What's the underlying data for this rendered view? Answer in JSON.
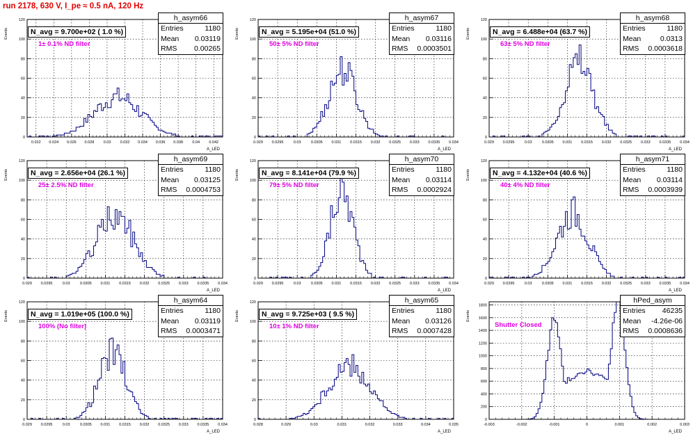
{
  "title": "run 2178,   630 V, I_pe ≈ 0.5 nA, 120 Hz",
  "chart_data": [
    {
      "type": "histogram",
      "name": "h_asym66",
      "navg": "N_avg = 9.700e+02 ( 1.0 %)",
      "label": "1± 0.1% ND filter",
      "stats": {
        "entries": "1180",
        "mean": "0.03119",
        "rms": "0.00265"
      },
      "xlim": [
        0.021,
        0.043
      ],
      "xticks": [
        "0.022",
        "0.024",
        "0.026",
        "0.028",
        "0.03",
        "0.032",
        "0.034",
        "0.036",
        "0.038",
        "0.04",
        "0.042"
      ],
      "ylim": [
        0,
        120
      ],
      "yticks": [
        "0",
        "20",
        "40",
        "60",
        "80",
        "100",
        "120"
      ],
      "ylabel": "Events",
      "xlabel": "A_LED",
      "mean": 0.03119,
      "rms": 0.00265,
      "peak": 42
    },
    {
      "type": "histogram",
      "name": "h_asym67",
      "navg": "N_avg = 5.195e+04 (51.0 %)",
      "label": "50± 5% ND filter",
      "stats": {
        "entries": "1180",
        "mean": "0.03116",
        "rms": "0.0003501"
      },
      "xlim": [
        0.029,
        0.034
      ],
      "xticks": [
        "0.029",
        "0.0295",
        "0.03",
        "0.0305",
        "0.031",
        "0.0315",
        "0.032",
        "0.0325",
        "0.033",
        "0.0335",
        "0.034"
      ],
      "ylim": [
        0,
        120
      ],
      "yticks": [
        "0",
        "20",
        "40",
        "60",
        "80",
        "100",
        "120"
      ],
      "ylabel": "Events",
      "xlabel": "A_LED",
      "mean": 0.03116,
      "rms": 0.0003501,
      "peak": 72
    },
    {
      "type": "histogram",
      "name": "h_asym68",
      "navg": "N_avg = 6.488e+04 (63.7 %)",
      "label": "63± 5% ND filter",
      "stats": {
        "entries": "1180",
        "mean": "0.0313",
        "rms": "0.0003618"
      },
      "xlim": [
        0.029,
        0.034
      ],
      "xticks": [
        "0.029",
        "0.0295",
        "0.03",
        "0.0305",
        "0.031",
        "0.0315",
        "0.032",
        "0.0325",
        "0.033",
        "0.0335",
        "0.034"
      ],
      "ylim": [
        0,
        120
      ],
      "yticks": [
        "0",
        "20",
        "40",
        "60",
        "80",
        "100",
        "120"
      ],
      "ylabel": "Events",
      "xlabel": "A_LED",
      "mean": 0.0313,
      "rms": 0.0003618,
      "peak": 80
    },
    {
      "type": "histogram",
      "name": "h_asym69",
      "navg": "N_avg = 2.656e+04 (26.1 %)",
      "label": "25± 2.5% ND filter",
      "stats": {
        "entries": "1180",
        "mean": "0.03125",
        "rms": "0.0004753"
      },
      "xlim": [
        0.029,
        0.034
      ],
      "xticks": [
        "0.029",
        "0.0295",
        "0.03",
        "0.0305",
        "0.031",
        "0.0315",
        "0.032",
        "0.0325",
        "0.033",
        "0.0335",
        "0.034"
      ],
      "ylim": [
        0,
        120
      ],
      "yticks": [
        "0",
        "20",
        "40",
        "60",
        "80",
        "100",
        "120"
      ],
      "ylabel": "Events",
      "xlabel": "A_LED",
      "mean": 0.03125,
      "rms": 0.0004753,
      "peak": 66
    },
    {
      "type": "histogram",
      "name": "h_asym70",
      "navg": "N_avg = 8.141e+04 (79.9 %)",
      "label": "79± 5% ND filter",
      "stats": {
        "entries": "1180",
        "mean": "0.03114",
        "rms": "0.0002924"
      },
      "xlim": [
        0.029,
        0.034
      ],
      "xticks": [
        "0.029",
        "0.0295",
        "0.03",
        "0.0305",
        "0.031",
        "0.0315",
        "0.032",
        "0.0325",
        "0.033",
        "0.0335",
        "0.034"
      ],
      "ylim": [
        0,
        120
      ],
      "yticks": [
        "0",
        "20",
        "40",
        "60",
        "80",
        "100",
        "120"
      ],
      "ylabel": "Events",
      "xlabel": "A_LED",
      "mean": 0.03114,
      "rms": 0.0002924,
      "peak": 93
    },
    {
      "type": "histogram",
      "name": "h_asym71",
      "navg": "N_avg = 4.132e+04 (40.6 %)",
      "label": "40± 4% ND filter",
      "stats": {
        "entries": "1180",
        "mean": "0.03114",
        "rms": "0.0003939"
      },
      "xlim": [
        0.029,
        0.034
      ],
      "xticks": [
        "0.029",
        "0.0295",
        "0.03",
        "0.0305",
        "0.031",
        "0.0315",
        "0.032",
        "0.0325",
        "0.033",
        "0.0335",
        "0.034"
      ],
      "ylim": [
        0,
        120
      ],
      "yticks": [
        "0",
        "20",
        "40",
        "60",
        "80",
        "100",
        "120"
      ],
      "ylabel": "Events",
      "xlabel": "A_LED",
      "mean": 0.03114,
      "rms": 0.0003939,
      "peak": 70
    },
    {
      "type": "histogram",
      "name": "h_asym64",
      "navg": "N_avg = 1.019e+05 (100.0 %)",
      "label": "100% (No filter)",
      "stats": {
        "entries": "1180",
        "mean": "0.03119",
        "rms": "0.0003471"
      },
      "xlim": [
        0.029,
        0.034
      ],
      "xticks": [
        "0.029",
        "0.0295",
        "0.03",
        "0.0305",
        "0.031",
        "0.0315",
        "0.032",
        "0.0325",
        "0.033",
        "0.0335",
        "0.034"
      ],
      "ylim": [
        0,
        120
      ],
      "yticks": [
        "0",
        "20",
        "40",
        "60",
        "80",
        "100",
        "120"
      ],
      "ylabel": "Events",
      "xlabel": "A_LED",
      "mean": 0.03119,
      "rms": 0.0003471,
      "peak": 70
    },
    {
      "type": "histogram",
      "name": "h_asym65",
      "navg": "N_avg = 9.725e+03 ( 9.5 %)",
      "label": "10± 1% ND filter",
      "stats": {
        "entries": "1180",
        "mean": "0.03126",
        "rms": "0.0007428"
      },
      "xlim": [
        0.028,
        0.035
      ],
      "xticks": [
        "0.028",
        "0.029",
        "0.03",
        "0.031",
        "0.032",
        "0.033",
        "0.034",
        "0.035"
      ],
      "ylim": [
        0,
        120
      ],
      "yticks": [
        "0",
        "20",
        "40",
        "60",
        "80",
        "100",
        "120"
      ],
      "ylabel": "Events",
      "xlabel": "A_LED",
      "mean": 0.03126,
      "rms": 0.0007428,
      "peak": 55
    },
    {
      "type": "histogram",
      "name": "hPed_asym",
      "navg": "",
      "label": "Shutter Closed",
      "stats": {
        "entries": "46235",
        "mean": "-4.26e-06",
        "rms": "0.0008636"
      },
      "xlim": [
        -0.003,
        0.003
      ],
      "xticks": [
        "-0.003",
        "-0.002",
        "-0.001",
        "0",
        "0.001",
        "0.002",
        "0.003"
      ],
      "ylim": [
        0,
        1850
      ],
      "yticks": [
        "0",
        "200",
        "400",
        "600",
        "800",
        "1000",
        "1200",
        "1400",
        "1600",
        "1800"
      ],
      "ylabel": "Events",
      "xlabel": "A_LED",
      "peaks": [
        {
          "x": -0.001,
          "sigma": 0.00022,
          "height": 1560
        },
        {
          "x": 0.00095,
          "sigma": 0.00022,
          "height": 1800
        }
      ],
      "floor": 650,
      "peak": 1790
    }
  ]
}
